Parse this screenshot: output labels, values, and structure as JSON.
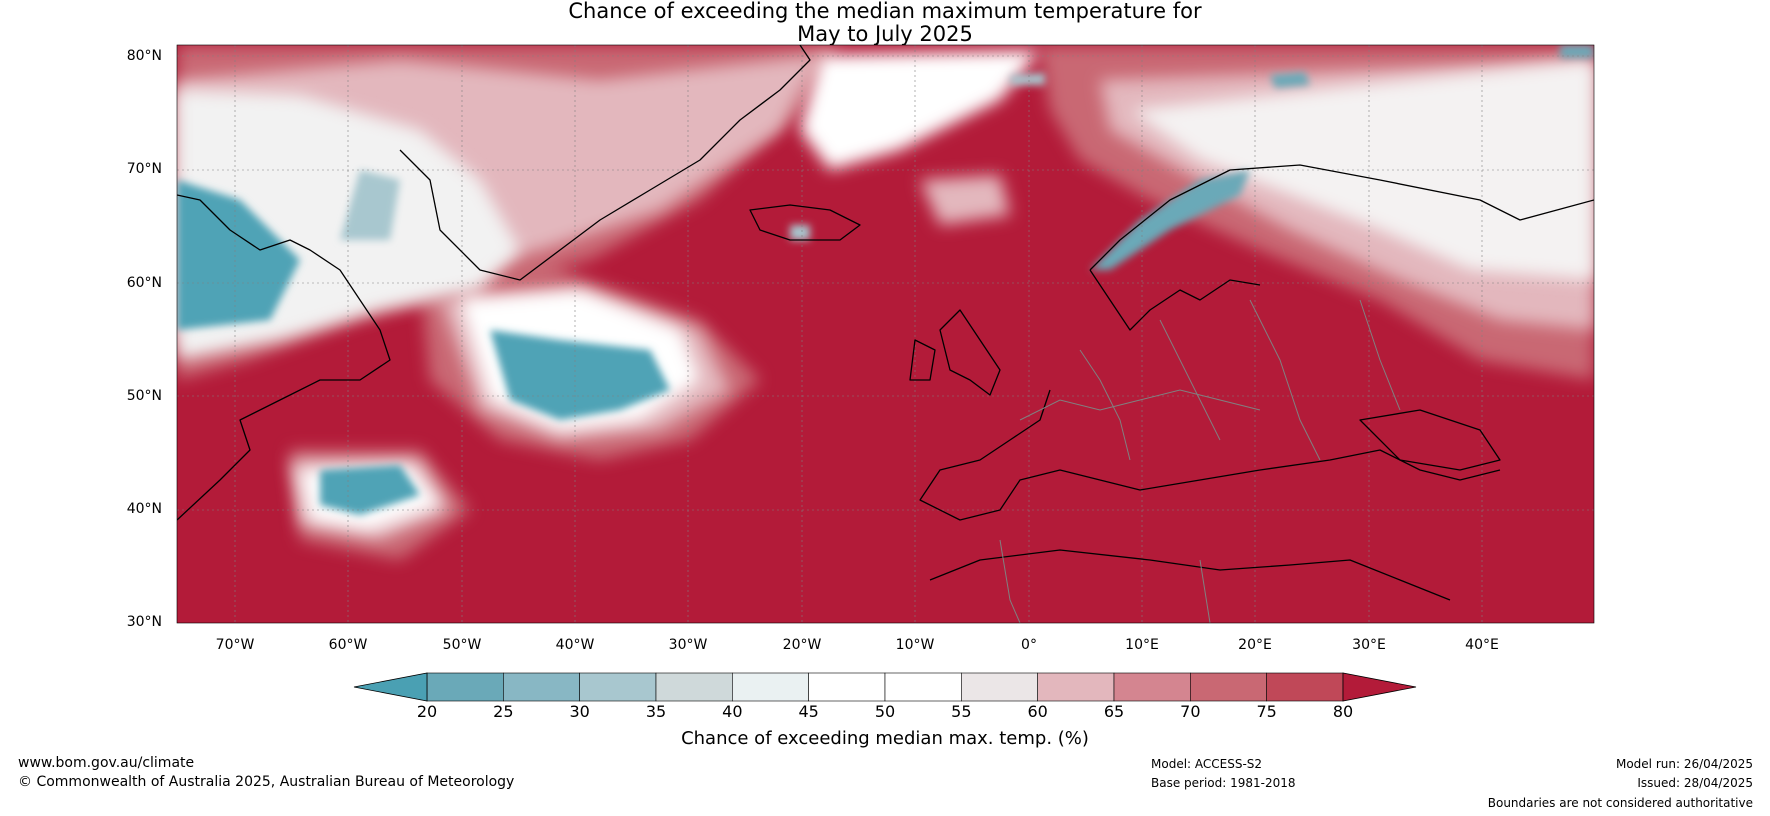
{
  "title": {
    "line1": "Chance of exceeding the median maximum temperature for",
    "line2": "May to July 2025"
  },
  "map": {
    "region": "North Atlantic and Europe",
    "lon_range": [
      "75°W",
      "50°E"
    ],
    "lat_range": [
      "30°N",
      "81°N"
    ],
    "lat_labels": [
      "80°N",
      "70°N",
      "60°N",
      "50°N",
      "40°N",
      "30°N"
    ],
    "lon_labels": [
      "70°W",
      "60°W",
      "50°W",
      "40°W",
      "30°W",
      "20°W",
      "10°W",
      "0°",
      "10°E",
      "20°E",
      "30°E",
      "40°E"
    ],
    "colors": {
      "dominant_warm": "#b31b39",
      "cool": "#4fa3b6",
      "neutral": "#ffffff",
      "coastline": "#000000",
      "borders": "#808080"
    },
    "cool_regions": [
      "Labrador / Baffin region",
      "North Atlantic near 50°N 40°W",
      "Atlantic near 42°N 60°W",
      "Scandinavian mountains"
    ],
    "neutral_regions": [
      "Greenland interior",
      "Northern Russia",
      "Arctic near Svalbard"
    ]
  },
  "colorbar": {
    "label": "Chance of exceeding median max. temp. (%)",
    "ticks": [
      "20",
      "25",
      "30",
      "35",
      "40",
      "45",
      "50",
      "55",
      "60",
      "65",
      "70",
      "75",
      "80"
    ],
    "levels": [
      20,
      25,
      30,
      35,
      40,
      45,
      50,
      55,
      60,
      65,
      70,
      75,
      80
    ],
    "below_color": "#4aa0b3",
    "above_color": "#b31b39",
    "segment_colors": [
      "#6aa9b8",
      "#88b7c4",
      "#a8c7cf",
      "#cfd9da",
      "#eaf1f2",
      "#ffffff",
      "#ffffff",
      "#ebe6e7",
      "#e3b7bd",
      "#d48590",
      "#c96873",
      "#c04858"
    ]
  },
  "footer": {
    "website": "www.bom.gov.au/climate",
    "copyright": "© Commonwealth of Australia 2025, Australian Bureau of Meteorology",
    "model": "Model: ACCESS-S2",
    "base_period": "Base period: 1981-2018",
    "model_run": "Model run: 26/04/2025",
    "issued": "Issued: 28/04/2025",
    "disclaimer": "Boundaries are not considered authoritative"
  }
}
